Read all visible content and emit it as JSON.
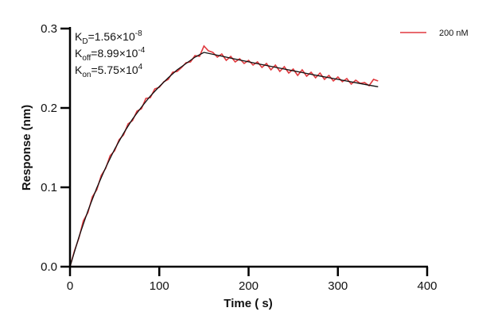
{
  "chart_data": {
    "type": "line",
    "xlabel": "Time ( s)",
    "ylabel": "Response (nm)",
    "xlim": [
      0,
      400
    ],
    "ylim": [
      0,
      0.3
    ],
    "xticks": [
      "0",
      "100",
      "200",
      "300",
      "400"
    ],
    "yticks": [
      "0.0",
      "0.1",
      "0.2",
      "0.3"
    ],
    "grid": false,
    "legend_position": "top-right",
    "annotations": [
      {
        "base": "K",
        "sub": "D",
        "mant": "=1.56×10",
        "exp": "-8"
      },
      {
        "base": "K",
        "sub": "off",
        "mant": "=8.99×10",
        "exp": "-4"
      },
      {
        "base": "K",
        "sub": "on",
        "mant": "=5.75×10",
        "exp": "4"
      }
    ],
    "series": [
      {
        "name": "200 nM",
        "color": "#e0393e",
        "x": [
          0,
          5,
          10,
          15,
          20,
          25,
          30,
          35,
          40,
          45,
          50,
          55,
          60,
          65,
          70,
          75,
          80,
          85,
          90,
          95,
          100,
          105,
          110,
          115,
          120,
          125,
          130,
          135,
          140,
          145,
          150,
          155,
          160,
          165,
          170,
          175,
          180,
          185,
          190,
          195,
          200,
          205,
          210,
          215,
          220,
          225,
          230,
          235,
          240,
          245,
          250,
          255,
          260,
          265,
          270,
          275,
          280,
          285,
          290,
          295,
          300,
          305,
          310,
          315,
          320,
          325,
          330,
          335,
          340,
          345
        ],
        "y": [
          0.0,
          0.02,
          0.036,
          0.058,
          0.068,
          0.088,
          0.097,
          0.115,
          0.124,
          0.14,
          0.146,
          0.16,
          0.166,
          0.18,
          0.184,
          0.196,
          0.199,
          0.212,
          0.213,
          0.224,
          0.226,
          0.233,
          0.236,
          0.245,
          0.246,
          0.251,
          0.257,
          0.258,
          0.266,
          0.265,
          0.278,
          0.272,
          0.27,
          0.264,
          0.268,
          0.26,
          0.265,
          0.258,
          0.262,
          0.256,
          0.26,
          0.254,
          0.258,
          0.251,
          0.256,
          0.248,
          0.254,
          0.246,
          0.252,
          0.244,
          0.249,
          0.241,
          0.248,
          0.24,
          0.245,
          0.238,
          0.244,
          0.236,
          0.241,
          0.234,
          0.239,
          0.233,
          0.237,
          0.23,
          0.235,
          0.231,
          0.232,
          0.228,
          0.236,
          0.234
        ]
      },
      {
        "color": "#111111",
        "x": [
          0,
          10,
          20,
          30,
          40,
          50,
          60,
          70,
          80,
          90,
          100,
          110,
          120,
          130,
          140,
          150,
          160,
          170,
          180,
          190,
          200,
          210,
          220,
          230,
          240,
          250,
          260,
          270,
          280,
          290,
          300,
          310,
          320,
          330,
          340,
          345
        ],
        "y": [
          0,
          0.0373,
          0.0703,
          0.0994,
          0.125,
          0.148,
          0.168,
          0.186,
          0.201,
          0.215,
          0.227,
          0.238,
          0.248,
          0.256,
          0.264,
          0.27,
          0.2676,
          0.2652,
          0.2628,
          0.2604,
          0.2581,
          0.2558,
          0.2535,
          0.2512,
          0.249,
          0.2468,
          0.2446,
          0.2424,
          0.2402,
          0.2381,
          0.236,
          0.2339,
          0.2318,
          0.2297,
          0.2277,
          0.2267
        ]
      }
    ]
  }
}
